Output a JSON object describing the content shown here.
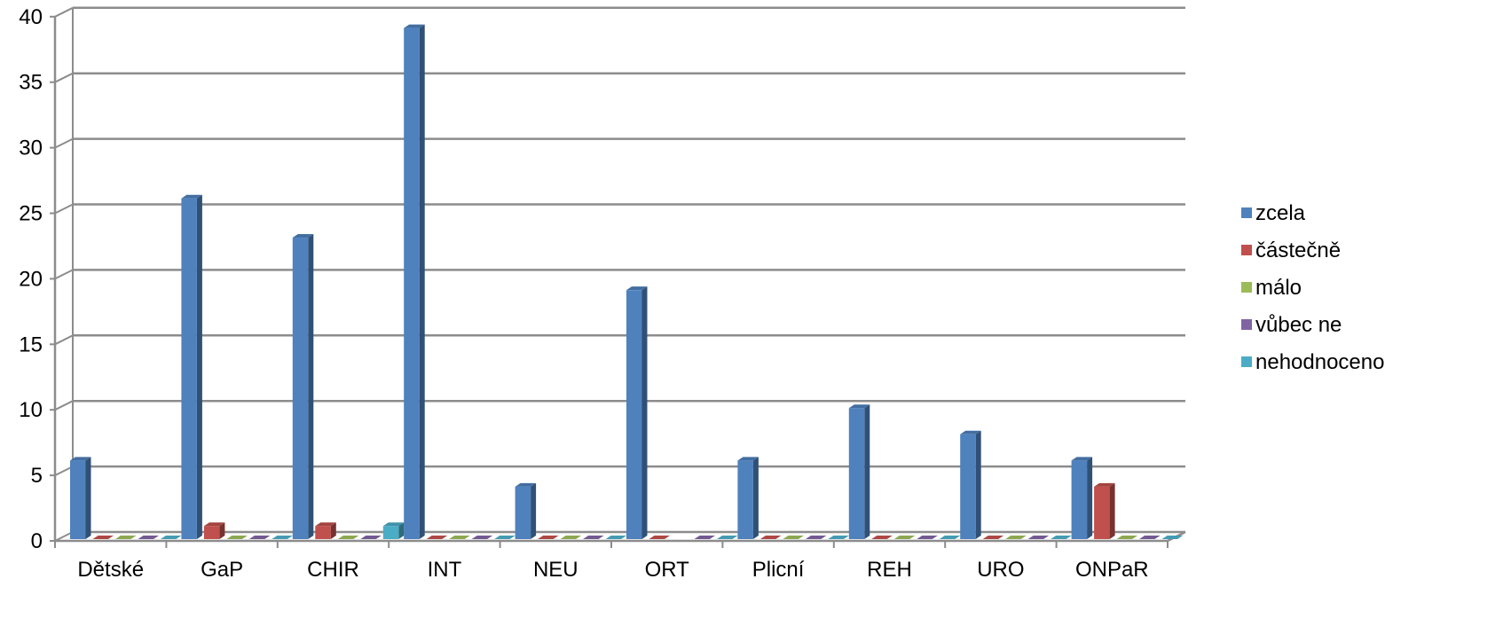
{
  "chart_data": {
    "type": "bar",
    "categories": [
      "Dětské",
      "GaP",
      "CHIR",
      "INT",
      "NEU",
      "ORT",
      "Plicní",
      "REH",
      "URO",
      "ONPaR"
    ],
    "series": [
      {
        "name": "zcela",
        "color": "#4F81BD",
        "values": [
          6,
          26,
          23,
          39,
          4,
          19,
          6,
          10,
          8,
          6
        ]
      },
      {
        "name": "částečně",
        "color": "#C0504D",
        "values": [
          0,
          1,
          1,
          0,
          0,
          0,
          0,
          0,
          0,
          4
        ]
      },
      {
        "name": "málo",
        "color": "#9BBB59",
        "values": [
          0,
          0,
          0,
          0,
          0,
          null,
          0,
          0,
          0,
          0
        ]
      },
      {
        "name": "vůbec ne",
        "color": "#8064A2",
        "values": [
          0,
          0,
          0,
          0,
          0,
          0,
          0,
          0,
          0,
          0
        ]
      },
      {
        "name": "nehodnoceno",
        "color": "#4BACC6",
        "values": [
          0,
          0,
          1,
          0,
          0,
          0,
          0,
          0,
          0,
          0
        ]
      }
    ],
    "yticks": [
      0,
      5,
      10,
      15,
      20,
      25,
      30,
      35,
      40
    ],
    "ylim": [
      0,
      40
    ],
    "grid": true,
    "legend_position": "right"
  }
}
